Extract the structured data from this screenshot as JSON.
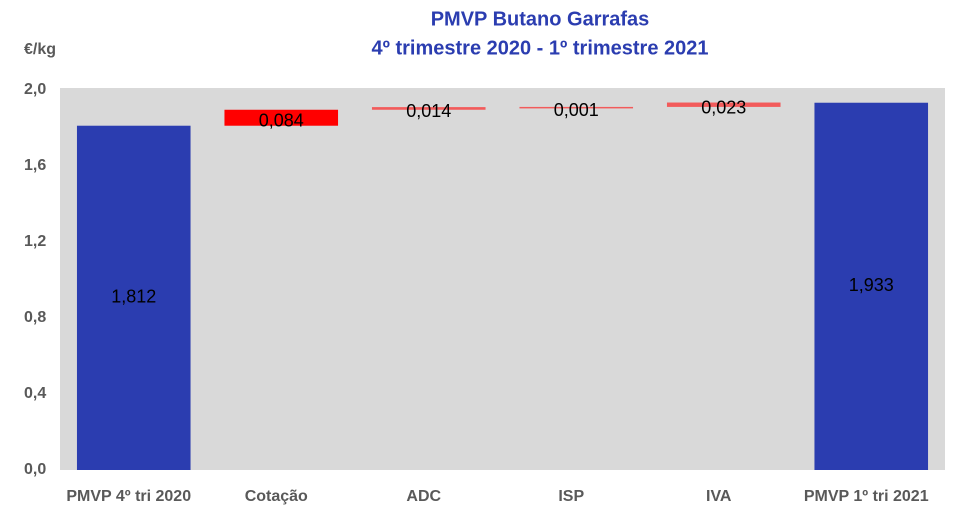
{
  "chart_data": {
    "type": "waterfall",
    "title": [
      "PMVP Butano Garrafas",
      "4º trimestre 2020 - 1º trimestre 2021"
    ],
    "y_label": "€/kg",
    "categories": [
      "PMVP 4º tri 2020",
      "Cotação",
      "ADC",
      "ISP",
      "IVA",
      "PMVP 1º tri 2021"
    ],
    "values": [
      1.812,
      0.084,
      0.014,
      0.001,
      0.023,
      1.933
    ],
    "value_labels": [
      "1,812",
      "0,084",
      "0,014",
      "0,001",
      "0,023",
      "1,933"
    ],
    "measure": [
      "absolute",
      "relative",
      "relative",
      "relative",
      "relative",
      "absolute"
    ],
    "colors": [
      "#2b3db0",
      "#ff0000",
      "#f25b5b",
      "#f25b5b",
      "#f25b5b",
      "#2b3db0"
    ],
    "ylim": [
      0,
      2
    ],
    "yticks": [
      {
        "value": 0,
        "label": "0,0"
      },
      {
        "value": 0.4,
        "label": "0,4"
      },
      {
        "value": 0.8,
        "label": "0,8"
      },
      {
        "value": 1.2,
        "label": "1,2"
      },
      {
        "value": 1.6,
        "label": "1,6"
      },
      {
        "value": 2,
        "label": "2,0"
      }
    ],
    "grid": false,
    "background": "#d9d9d9"
  }
}
